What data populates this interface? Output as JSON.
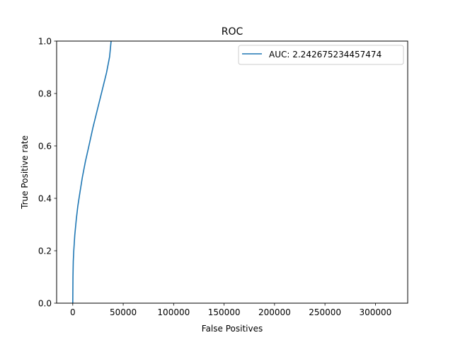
{
  "chart_data": {
    "type": "line",
    "title": "ROC",
    "xlabel": "False Positives",
    "ylabel": "True Positive rate",
    "xlim": [
      -16000,
      332000
    ],
    "ylim": [
      0.0,
      1.0
    ],
    "xticks": [
      0,
      50000,
      100000,
      150000,
      200000,
      250000,
      300000
    ],
    "xtick_labels": [
      "0",
      "50000",
      "100000",
      "150000",
      "200000",
      "250000",
      "300000"
    ],
    "yticks": [
      0.0,
      0.2,
      0.4,
      0.6,
      0.8,
      1.0
    ],
    "ytick_labels": [
      "0.0",
      "0.2",
      "0.4",
      "0.6",
      "0.8",
      "1.0"
    ],
    "grid": false,
    "legend_position": "upper-right",
    "series": [
      {
        "name": "AUC: 2.242675234457474",
        "color": "#1f77b4",
        "x": [
          0,
          200,
          500,
          1000,
          2000,
          3500,
          5000,
          7000,
          9500,
          12500,
          16000,
          20000,
          24500,
          29000,
          33500,
          36500,
          38000
        ],
        "y": [
          0.0,
          0.1,
          0.16,
          0.2,
          0.26,
          0.32,
          0.37,
          0.42,
          0.48,
          0.54,
          0.6,
          0.67,
          0.74,
          0.81,
          0.88,
          0.94,
          1.0
        ]
      }
    ]
  }
}
